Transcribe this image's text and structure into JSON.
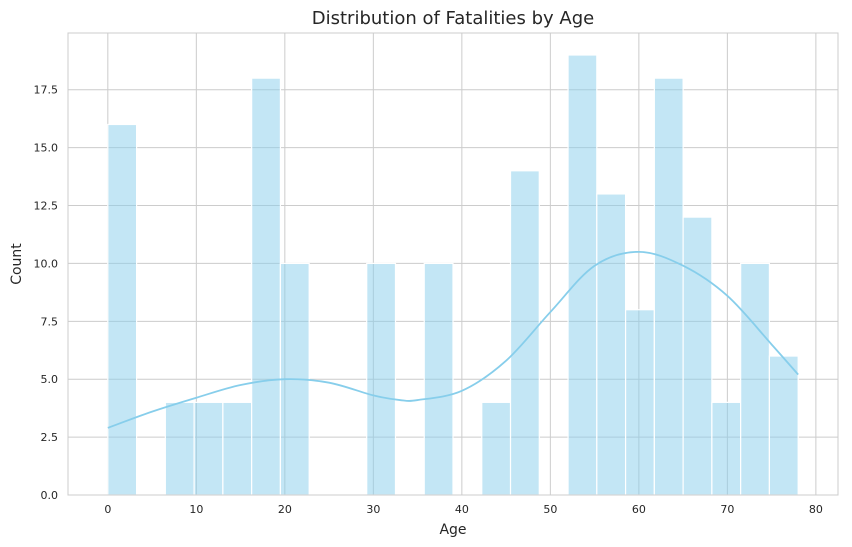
{
  "chart_data": {
    "type": "bar",
    "title": "Distribution of Fatalities by Age",
    "xlabel": "Age",
    "ylabel": "Count",
    "xlim": [
      -4.5,
      82.5
    ],
    "ylim": [
      0,
      19.95
    ],
    "x_ticks": [
      0,
      10,
      20,
      30,
      40,
      50,
      60,
      70,
      80
    ],
    "y_ticks": [
      0.0,
      2.5,
      5.0,
      7.5,
      10.0,
      12.5,
      15.0,
      17.5
    ],
    "y_tick_labels": [
      "0.0",
      "2.5",
      "5.0",
      "7.5",
      "10.0",
      "12.5",
      "15.0",
      "17.5"
    ],
    "grid": true,
    "bar_color": "#87ceeb",
    "bar_opacity": 0.5,
    "kde_color": "#87ceeb",
    "bins": [
      {
        "x0": 0.0,
        "x1": 3.25,
        "count": 16
      },
      {
        "x0": 3.25,
        "x1": 6.5,
        "count": 0
      },
      {
        "x0": 6.5,
        "x1": 9.75,
        "count": 4
      },
      {
        "x0": 9.75,
        "x1": 13.0,
        "count": 4
      },
      {
        "x0": 13.0,
        "x1": 16.25,
        "count": 4
      },
      {
        "x0": 16.25,
        "x1": 19.5,
        "count": 18
      },
      {
        "x0": 19.5,
        "x1": 22.75,
        "count": 10
      },
      {
        "x0": 22.75,
        "x1": 26.0,
        "count": 0
      },
      {
        "x0": 26.0,
        "x1": 29.25,
        "count": 0
      },
      {
        "x0": 29.25,
        "x1": 32.5,
        "count": 10
      },
      {
        "x0": 32.5,
        "x1": 35.75,
        "count": 0
      },
      {
        "x0": 35.75,
        "x1": 39.0,
        "count": 10
      },
      {
        "x0": 39.0,
        "x1": 42.25,
        "count": 0
      },
      {
        "x0": 42.25,
        "x1": 45.5,
        "count": 4
      },
      {
        "x0": 45.5,
        "x1": 48.75,
        "count": 14
      },
      {
        "x0": 48.75,
        "x1": 52.0,
        "count": 0
      },
      {
        "x0": 52.0,
        "x1": 55.25,
        "count": 19
      },
      {
        "x0": 55.25,
        "x1": 58.5,
        "count": 13
      },
      {
        "x0": 58.5,
        "x1": 61.75,
        "count": 8
      },
      {
        "x0": 61.75,
        "x1": 65.0,
        "count": 18
      },
      {
        "x0": 65.0,
        "x1": 68.25,
        "count": 12
      },
      {
        "x0": 68.25,
        "x1": 71.5,
        "count": 4
      },
      {
        "x0": 71.5,
        "x1": 74.75,
        "count": 10
      },
      {
        "x0": 74.75,
        "x1": 78.0,
        "count": 6
      }
    ],
    "kde": {
      "x": [
        0,
        5,
        10,
        15,
        20,
        25,
        30,
        33,
        35,
        40,
        45,
        50,
        55,
        60,
        65,
        70,
        75,
        78
      ],
      "y": [
        2.9,
        3.6,
        4.2,
        4.75,
        5.0,
        4.85,
        4.3,
        4.1,
        4.1,
        4.5,
        5.8,
        7.9,
        9.9,
        10.5,
        9.9,
        8.6,
        6.5,
        5.2
      ]
    }
  }
}
